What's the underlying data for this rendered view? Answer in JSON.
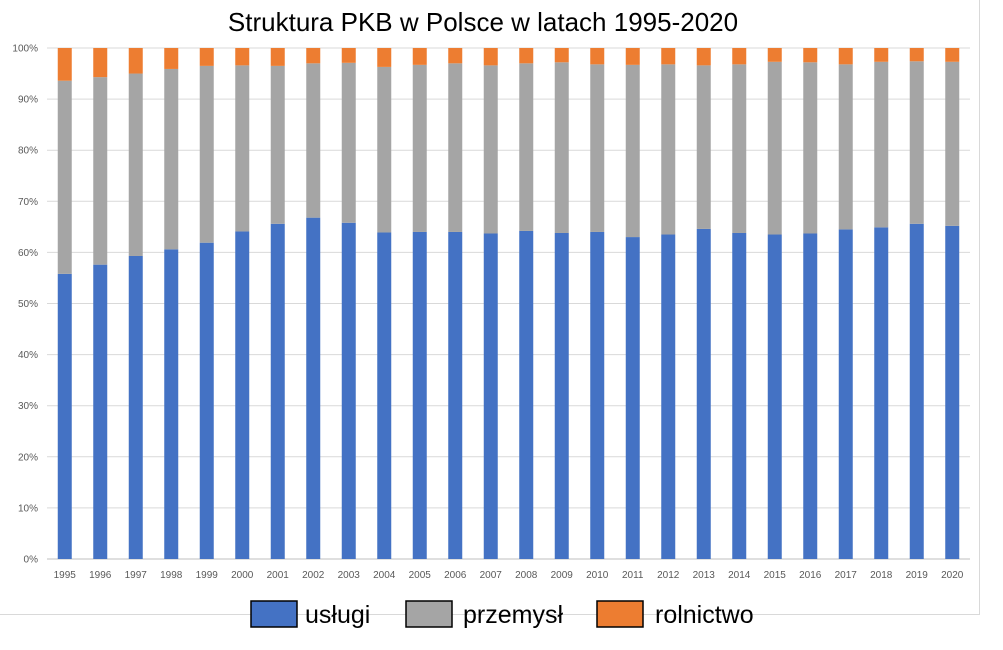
{
  "chart_data": {
    "type": "bar",
    "stacked": "percent",
    "title": "Struktura PKB w Polsce w latach 1995-2020",
    "xlabel": "",
    "ylabel": "",
    "ylim": [
      0,
      100
    ],
    "y_ticks": [
      "0%",
      "10%",
      "20%",
      "30%",
      "40%",
      "50%",
      "60%",
      "70%",
      "80%",
      "90%",
      "100%"
    ],
    "grid": true,
    "legend_position": "bottom",
    "categories": [
      "1995",
      "1996",
      "1997",
      "1998",
      "1999",
      "2000",
      "2001",
      "2002",
      "2003",
      "2004",
      "2005",
      "2006",
      "2007",
      "2008",
      "2009",
      "2010",
      "2011",
      "2012",
      "2013",
      "2014",
      "2015",
      "2016",
      "2017",
      "2018",
      "2019",
      "2020"
    ],
    "series": [
      {
        "name": "usługi",
        "color": "#4472c4",
        "values": [
          55.8,
          57.6,
          59.3,
          60.6,
          61.9,
          64.1,
          65.6,
          66.8,
          65.8,
          63.9,
          64.0,
          64.0,
          63.7,
          64.2,
          63.8,
          64.0,
          63.0,
          63.5,
          64.6,
          63.8,
          63.5,
          63.7,
          64.5,
          64.9,
          65.6,
          65.2
        ]
      },
      {
        "name": "przemysł",
        "color": "#a5a5a5",
        "values": [
          37.8,
          36.7,
          35.7,
          35.3,
          34.6,
          32.5,
          30.9,
          30.2,
          31.3,
          32.4,
          32.7,
          33.0,
          32.9,
          32.8,
          33.4,
          32.8,
          33.7,
          33.3,
          32.0,
          33.0,
          33.8,
          33.5,
          32.3,
          32.4,
          31.8,
          32.1
        ]
      },
      {
        "name": "rolnictwo",
        "color": "#ed7d31",
        "values": [
          6.4,
          5.7,
          5.0,
          4.1,
          3.5,
          3.4,
          3.5,
          3.0,
          2.9,
          3.7,
          3.3,
          3.0,
          3.4,
          3.0,
          2.8,
          3.2,
          3.3,
          3.2,
          3.4,
          3.2,
          2.7,
          2.8,
          3.2,
          2.7,
          2.6,
          2.7
        ]
      }
    ]
  }
}
